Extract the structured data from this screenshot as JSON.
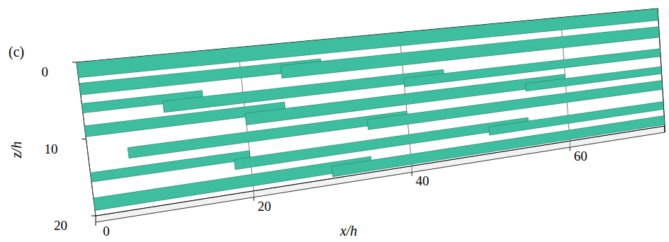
{
  "chart_data": {
    "type": "isosurface",
    "panel_label": "(c)",
    "xlabel": "x/h",
    "ylabel": "z/h",
    "xlim": [
      0,
      72
    ],
    "xticks": [
      0,
      20,
      40,
      60
    ],
    "ylim": [
      0,
      20
    ],
    "yticks": [
      0,
      10,
      20
    ],
    "grid": true,
    "color": "#3dbf9f",
    "streaks": [
      {
        "x0": 0,
        "x1": 72,
        "z": 1,
        "w": 2
      },
      {
        "x0": 0,
        "x1": 30,
        "z": 3.5,
        "w": 1.5
      },
      {
        "x0": 25,
        "x1": 72,
        "z": 4,
        "w": 1.8
      },
      {
        "x0": 0,
        "x1": 15,
        "z": 6,
        "w": 1.2
      },
      {
        "x0": 10,
        "x1": 45,
        "z": 7,
        "w": 1.5
      },
      {
        "x0": 40,
        "x1": 72,
        "z": 7.5,
        "w": 1.3
      },
      {
        "x0": 0,
        "x1": 25,
        "z": 9,
        "w": 1.4
      },
      {
        "x0": 20,
        "x1": 60,
        "z": 10,
        "w": 1.6
      },
      {
        "x0": 55,
        "x1": 72,
        "z": 10.5,
        "w": 1.2
      },
      {
        "x0": 5,
        "x1": 40,
        "z": 12.5,
        "w": 1.4
      },
      {
        "x0": 35,
        "x1": 72,
        "z": 13,
        "w": 1.5
      },
      {
        "x0": 0,
        "x1": 20,
        "z": 15,
        "w": 1.2
      },
      {
        "x0": 18,
        "x1": 55,
        "z": 16,
        "w": 1.4
      },
      {
        "x0": 50,
        "x1": 72,
        "z": 16.5,
        "w": 1.3
      },
      {
        "x0": 0,
        "x1": 35,
        "z": 18.5,
        "w": 1.6
      },
      {
        "x0": 30,
        "x1": 72,
        "z": 19,
        "w": 1.5
      }
    ]
  }
}
